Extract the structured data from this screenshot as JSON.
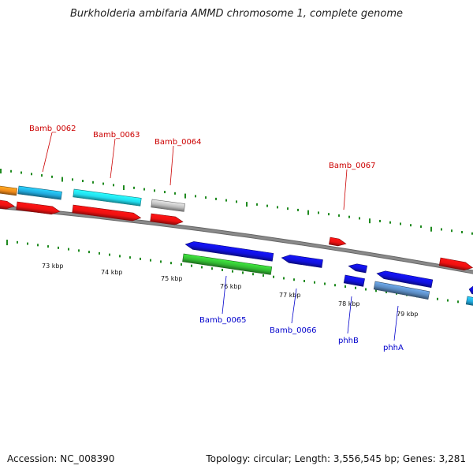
{
  "title": "Burkholderia ambifaria AMMD chromosome 1, complete genome",
  "footer": {
    "accession": "Accession: NC_008390",
    "summary": "Topology: circular; Length: 3,556,545 bp; Genes: 3,281"
  },
  "colors": {
    "backbone": "#8a8a8a",
    "tick": "#1f8a1f",
    "forward_label": "#cc0000",
    "reverse_label": "#0000cc",
    "red": "#ee1111",
    "blue": "#1111dd",
    "green": "#33bb33",
    "cyan": "#22ddee",
    "lightblue": "#22aadd",
    "grey": "#bbbbbb",
    "orange": "#f08a1a",
    "steelblue": "#5a8ac0"
  },
  "ruler_labels": [
    "73 kbp",
    "74 kbp",
    "75 kbp",
    "76 kbp",
    "77 kbp",
    "78 kbp",
    "79 kbp"
  ],
  "gene_labels": [
    {
      "name": "Bamb_0062",
      "strand": "forward"
    },
    {
      "name": "Bamb_0063",
      "strand": "forward"
    },
    {
      "name": "Bamb_0064",
      "strand": "forward"
    },
    {
      "name": "Bamb_0067",
      "strand": "forward"
    },
    {
      "name": "Bamb_0065",
      "strand": "reverse"
    },
    {
      "name": "Bamb_0066",
      "strand": "reverse"
    },
    {
      "name": "phhB",
      "strand": "reverse"
    },
    {
      "name": "phhA",
      "strand": "reverse"
    }
  ],
  "features": [
    {
      "id": "f-orange",
      "strand": "forward-outer",
      "color": "orange",
      "shape": "bar"
    },
    {
      "id": "f-lightblue",
      "strand": "forward-outer",
      "color": "lightblue",
      "shape": "bar"
    },
    {
      "id": "f-cyan",
      "strand": "forward-outer",
      "color": "cyan",
      "shape": "bar"
    },
    {
      "id": "f-grey",
      "strand": "forward-outer",
      "color": "grey",
      "shape": "bar"
    },
    {
      "id": "f-red-0061",
      "strand": "forward",
      "color": "red",
      "shape": "arrow"
    },
    {
      "id": "f-red-0062",
      "strand": "forward",
      "color": "red",
      "shape": "arrow"
    },
    {
      "id": "f-red-0063",
      "strand": "forward",
      "color": "red",
      "shape": "arrow"
    },
    {
      "id": "f-red-0064",
      "strand": "forward",
      "color": "red",
      "shape": "arrow"
    },
    {
      "id": "f-red-0067",
      "strand": "forward",
      "color": "red",
      "shape": "arrow"
    },
    {
      "id": "f-red-right",
      "strand": "forward",
      "color": "red",
      "shape": "arrow"
    },
    {
      "id": "r-blue-0065",
      "strand": "reverse",
      "color": "blue",
      "shape": "arrow"
    },
    {
      "id": "r-blue-0066",
      "strand": "reverse",
      "color": "blue",
      "shape": "arrow"
    },
    {
      "id": "r-blue-small",
      "strand": "reverse",
      "color": "blue",
      "shape": "arrow"
    },
    {
      "id": "r-blue-phhA",
      "strand": "reverse",
      "color": "blue",
      "shape": "arrow"
    },
    {
      "id": "r-blue-edge",
      "strand": "reverse",
      "color": "blue",
      "shape": "arrow"
    },
    {
      "id": "r-green-0065",
      "strand": "reverse-outer",
      "color": "green",
      "shape": "bar"
    },
    {
      "id": "r-blue-phhB",
      "strand": "reverse-outer",
      "color": "blue",
      "shape": "bar"
    },
    {
      "id": "r-steel-phhA",
      "strand": "reverse-outer",
      "color": "steelblue",
      "shape": "bar"
    },
    {
      "id": "r-lightblue-edge",
      "strand": "reverse-outer",
      "color": "lightblue",
      "shape": "bar"
    }
  ]
}
